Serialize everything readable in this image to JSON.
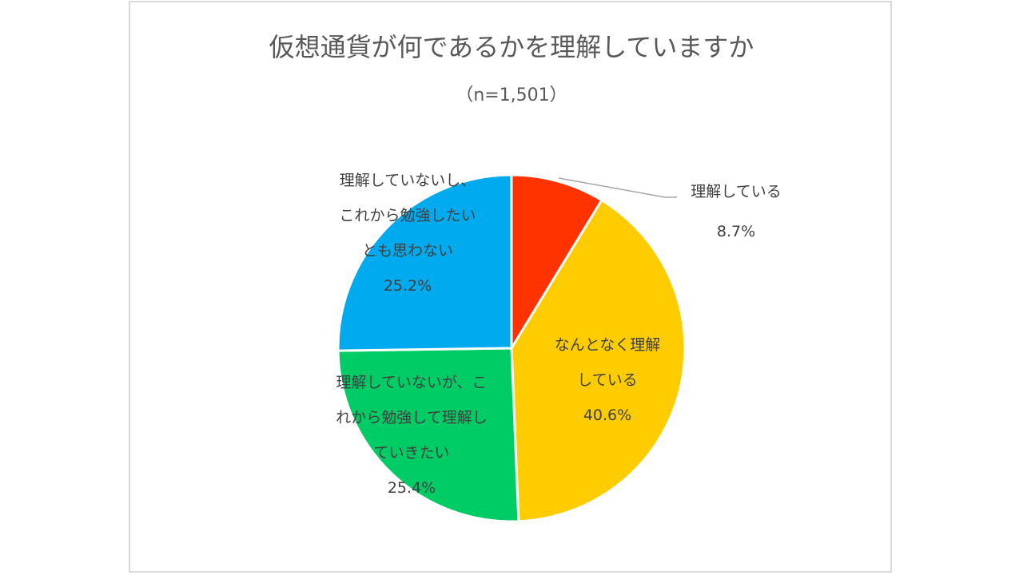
{
  "chart_data": {
    "type": "pie",
    "title": "仮想通貨が何であるかを理解していますか",
    "subtitle": "（n=1,501）",
    "start_angle": "12 o'clock, clockwise",
    "slices": [
      {
        "label": "理解している",
        "value": 8.7,
        "display": "8.7%",
        "color": "#FF3300",
        "label_lines": [
          "理解している"
        ]
      },
      {
        "label": "なんとなく理解している",
        "value": 40.6,
        "display": "40.6%",
        "color": "#FFCC00",
        "label_lines": [
          "なんとなく理解",
          "している"
        ]
      },
      {
        "label": "理解していないが、これから勉強して理解していきたい",
        "value": 25.4,
        "display": "25.4%",
        "color": "#00CC66",
        "label_lines": [
          "理解していないが、こ",
          "れから勉強して理解し",
          "ていきたい"
        ]
      },
      {
        "label": "理解していないし、これから勉強したいとも思わない",
        "value": 25.2,
        "display": "25.2%",
        "color": "#00AAEE",
        "label_lines": [
          "理解していないし、",
          "これから勉強したい",
          "とも思わない"
        ]
      }
    ],
    "legend": "none (data labels on/near slices)",
    "leader_line_on": "理解している"
  }
}
